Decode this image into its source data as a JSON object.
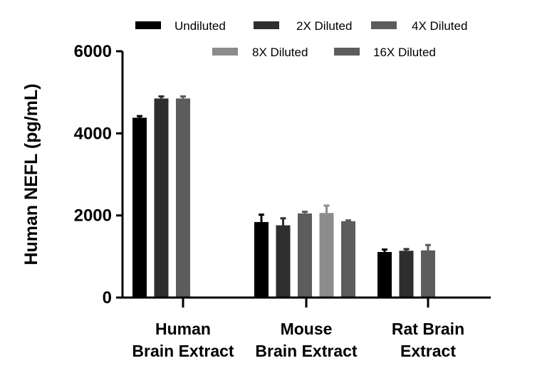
{
  "chart_data": {
    "type": "bar",
    "title": "",
    "xlabel": "",
    "ylabel": "Human NEFL (pg/mL)",
    "ylim": [
      0,
      6000
    ],
    "yticks": [
      0,
      2000,
      4000,
      6000
    ],
    "categories": [
      [
        "Human",
        "Brain Extract"
      ],
      [
        "Mouse",
        "Brain Extract"
      ],
      [
        "Rat Brain",
        "Extract"
      ]
    ],
    "series": [
      {
        "name": "Undiluted",
        "color": "#000000",
        "values": [
          4380,
          1840,
          1110
        ],
        "errors": [
          40,
          180,
          60
        ]
      },
      {
        "name": "2X Diluted",
        "color": "#2e2e2e",
        "values": [
          4850,
          1760,
          1140
        ],
        "errors": [
          50,
          170,
          40
        ]
      },
      {
        "name": "4X Diluted",
        "color": "#5c5c5c",
        "values": [
          4850,
          2050,
          1150
        ],
        "errors": [
          50,
          40,
          130
        ]
      },
      {
        "name": "8X Diluted",
        "color": "#8c8c8c",
        "values": [
          null,
          2060,
          null
        ],
        "errors": [
          null,
          180,
          null
        ]
      },
      {
        "name": "16X Diluted",
        "color": "#5c5c5c",
        "values": [
          null,
          1860,
          null
        ],
        "errors": [
          null,
          20,
          null
        ]
      }
    ],
    "legend_position": "top",
    "grid": false
  }
}
